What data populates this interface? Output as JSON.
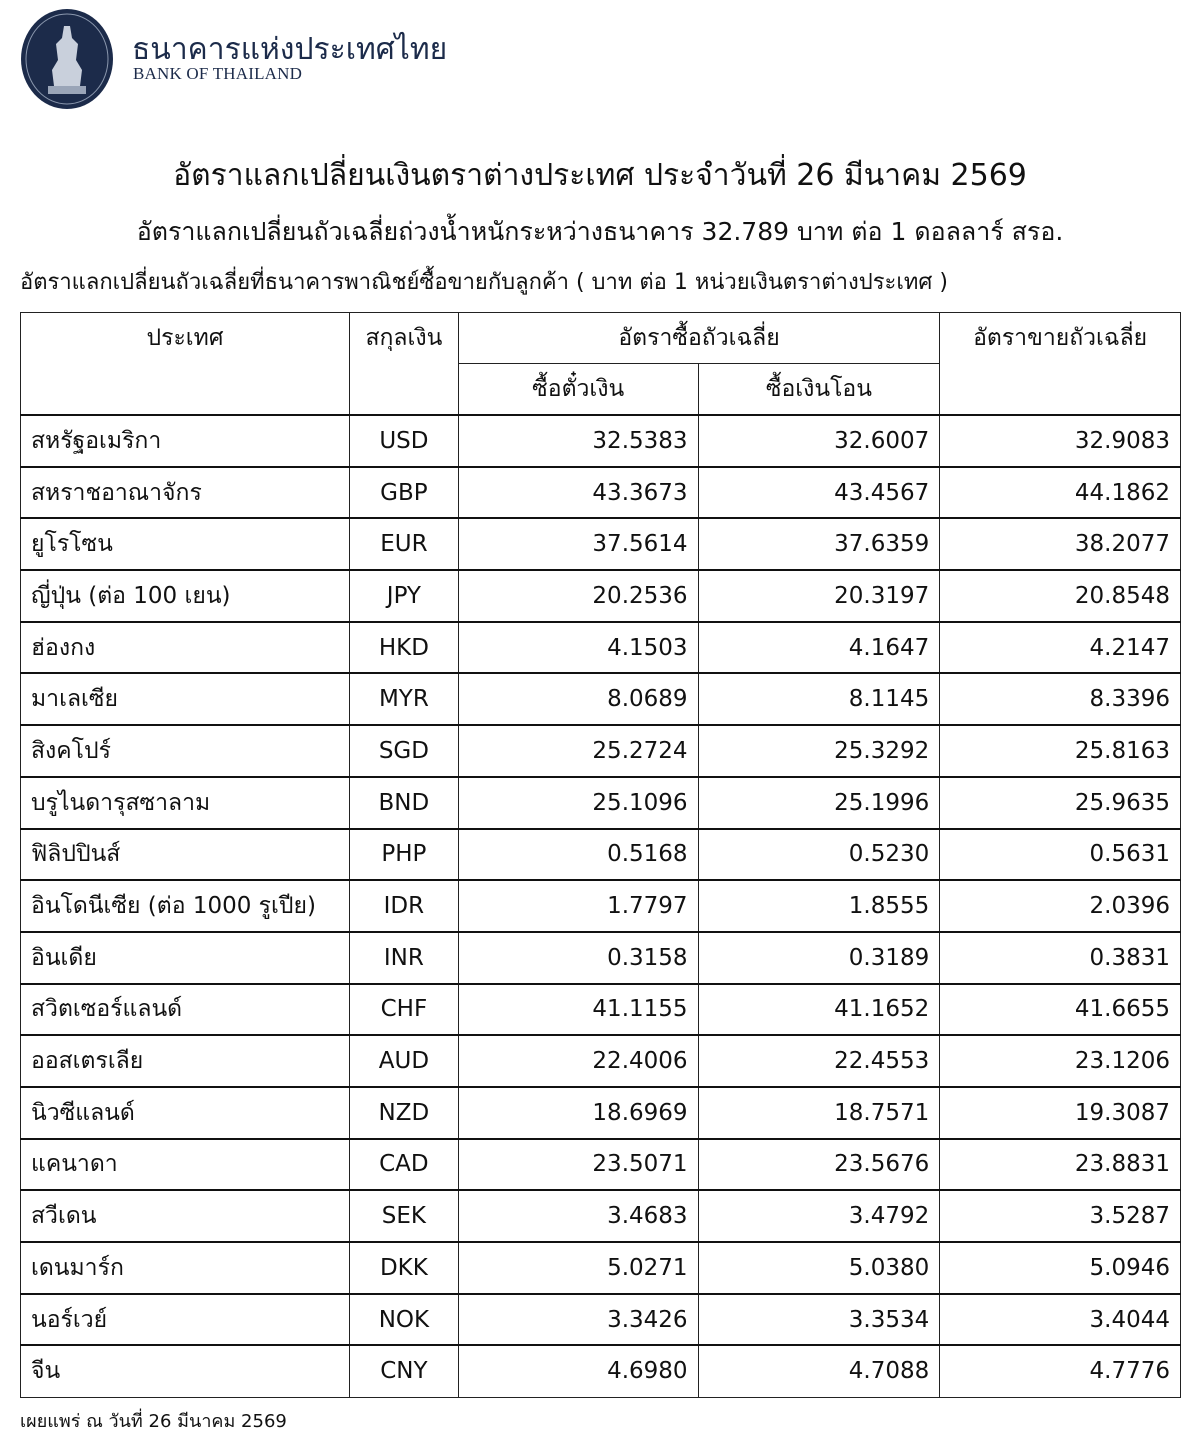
{
  "header": {
    "bank_name_th": "ธนาคารแห่งประเทศไทย",
    "bank_name_en": "BANK OF THAILAND",
    "logo_color": "#1c2b4a"
  },
  "title": "อัตราแลกเปลี่ยนเงินตราต่างประเทศ ประจำวันที่ 26 มีนาคม 2569",
  "subtitle": "อัตราแลกเปลี่ยนถัวเฉลี่ยถ่วงน้ำหนักระหว่างธนาคาร 32.789 บาท ต่อ 1 ดอลลาร์ สรอ.",
  "note": "อัตราแลกเปลี่ยนถัวเฉลี่ยที่ธนาคารพาณิชย์ซื้อขายกับลูกค้า ( บาท ต่อ 1 หน่วยเงินตราต่างประเทศ )",
  "table": {
    "headers": {
      "country": "ประเทศ",
      "currency": "สกุลเงิน",
      "buying": "อัตราซื้อถัวเฉลี่ย",
      "buying_sight": "ซื้อตั๋วเงิน",
      "buying_transfer": "ซื้อเงินโอน",
      "selling": "อัตราขายถัวเฉลี่ย"
    },
    "rows": [
      [
        "สหรัฐอเมริกา",
        "USD",
        "32.5383",
        "32.6007",
        "32.9083"
      ],
      [
        "สหราชอาณาจักร",
        "GBP",
        "43.3673",
        "43.4567",
        "44.1862"
      ],
      [
        "ยูโรโซน",
        "EUR",
        "37.5614",
        "37.6359",
        "38.2077"
      ],
      [
        "ญี่ปุ่น (ต่อ 100 เยน)",
        "JPY",
        "20.2536",
        "20.3197",
        "20.8548"
      ],
      [
        "ฮ่องกง",
        "HKD",
        "4.1503",
        "4.1647",
        "4.2147"
      ],
      [
        "มาเลเซีย",
        "MYR",
        "8.0689",
        "8.1145",
        "8.3396"
      ],
      [
        "สิงคโปร์",
        "SGD",
        "25.2724",
        "25.3292",
        "25.8163"
      ],
      [
        "บรูไนดารุสซาลาม",
        "BND",
        "25.1096",
        "25.1996",
        "25.9635"
      ],
      [
        "ฟิลิปปินส์",
        "PHP",
        "0.5168",
        "0.5230",
        "0.5631"
      ],
      [
        "อินโดนีเซีย (ต่อ 1000 รูเปีย)",
        "IDR",
        "1.7797",
        "1.8555",
        "2.0396"
      ],
      [
        "อินเดีย",
        "INR",
        "0.3158",
        "0.3189",
        "0.3831"
      ],
      [
        "สวิตเซอร์แลนด์",
        "CHF",
        "41.1155",
        "41.1652",
        "41.6655"
      ],
      [
        "ออสเตรเลีย",
        "AUD",
        "22.4006",
        "22.4553",
        "23.1206"
      ],
      [
        "นิวซีแลนด์",
        "NZD",
        "18.6969",
        "18.7571",
        "19.3087"
      ],
      [
        "แคนาดา",
        "CAD",
        "23.5071",
        "23.5676",
        "23.8831"
      ],
      [
        "สวีเดน",
        "SEK",
        "3.4683",
        "3.4792",
        "3.5287"
      ],
      [
        "เดนมาร์ก",
        "DKK",
        "5.0271",
        "5.0380",
        "5.0946"
      ],
      [
        "นอร์เวย์",
        "NOK",
        "3.3426",
        "3.3534",
        "3.4044"
      ],
      [
        "จีน",
        "CNY",
        "4.6980",
        "4.7088",
        "4.7776"
      ]
    ]
  },
  "footer": "เผยแพร่ ณ วันที่ 26 มีนาคม 2569"
}
